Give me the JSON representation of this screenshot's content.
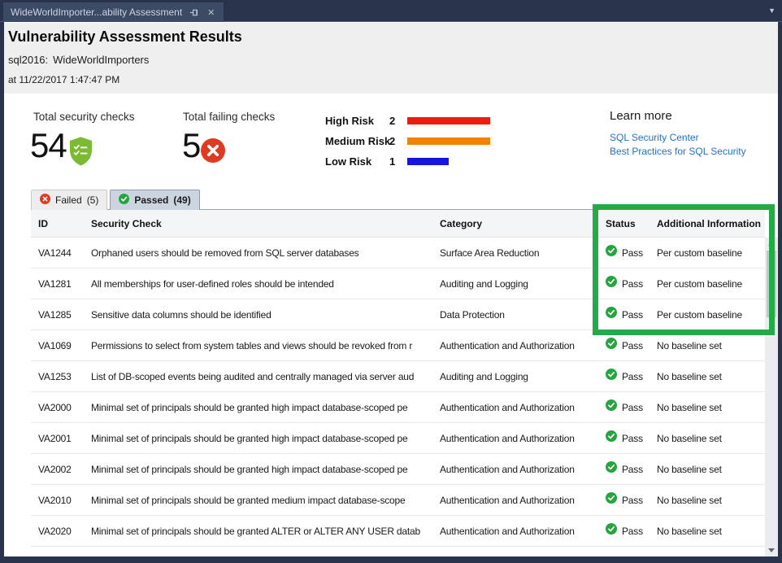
{
  "window": {
    "tab_title": "WideWorldImporter...ability Assessment",
    "dropdown_icon": "▼"
  },
  "header": {
    "title": "Vulnerability Assessment Results",
    "server_label": "sql2016:",
    "database": "WideWorldImporters",
    "timestamp": "at 11/22/2017 1:47:47 PM"
  },
  "summary": {
    "total_checks_label": "Total security checks",
    "total_checks_value": "54",
    "failing_checks_label": "Total failing checks",
    "failing_checks_value": "5",
    "risks": [
      {
        "label": "High Risk",
        "count": 2,
        "color": "#ec1c11"
      },
      {
        "label": "Medium Risk",
        "count": 2,
        "color": "#ee8400"
      },
      {
        "label": "Low Risk",
        "count": 1,
        "color": "#1515dd"
      }
    ],
    "learn_more": {
      "title": "Learn more",
      "links": [
        "SQL Security Center",
        "Best Practices for SQL Security"
      ]
    }
  },
  "tabs": [
    {
      "label": "Failed",
      "count": "(5)",
      "status": "failed",
      "active": false
    },
    {
      "label": "Passed",
      "count": "(49)",
      "status": "passed",
      "active": true
    }
  ],
  "table": {
    "columns": [
      "ID",
      "Security Check",
      "Category",
      "Status",
      "Additional Information"
    ],
    "rows": [
      {
        "id": "VA1244",
        "check": "Orphaned users should be removed from SQL server databases",
        "category": "Surface Area Reduction",
        "status": "Pass",
        "info": "Per custom baseline"
      },
      {
        "id": "VA1281",
        "check": "All memberships for user-defined roles should be intended",
        "category": "Auditing and Logging",
        "status": "Pass",
        "info": "Per custom baseline"
      },
      {
        "id": "VA1285",
        "check": "Sensitive data columns should be identified",
        "category": "Data Protection",
        "status": "Pass",
        "info": "Per custom baseline"
      },
      {
        "id": "VA1069",
        "check": "Permissions to select from system tables and views should be revoked from r",
        "category": "Authentication and Authorization",
        "status": "Pass",
        "info": "No baseline set"
      },
      {
        "id": "VA1253",
        "check": "List of DB-scoped events being audited and centrally managed via server aud",
        "category": "Auditing and Logging",
        "status": "Pass",
        "info": "No baseline set"
      },
      {
        "id": "VA2000",
        "check": "Minimal set of principals should be granted high impact database-scoped pe",
        "category": "Authentication and Authorization",
        "status": "Pass",
        "info": "No baseline set"
      },
      {
        "id": "VA2001",
        "check": "Minimal set of principals should be granted high impact database-scoped pe",
        "category": "Authentication and Authorization",
        "status": "Pass",
        "info": "No baseline set"
      },
      {
        "id": "VA2002",
        "check": "Minimal set of principals should be granted high impact database-scoped pe",
        "category": "Authentication and Authorization",
        "status": "Pass",
        "info": "No baseline set"
      },
      {
        "id": "VA2010",
        "check": "Minimal set of principals should be granted medium impact database-scope",
        "category": "Authentication and Authorization",
        "status": "Pass",
        "info": "No baseline set"
      },
      {
        "id": "VA2020",
        "check": "Minimal set of principals should be granted ALTER or ALTER ANY USER datab",
        "category": "Authentication and Authorization",
        "status": "Pass",
        "info": "No baseline set"
      }
    ]
  },
  "colors": {
    "chrome_navy": "#29344c",
    "annotation_green": "#24aa46",
    "pass_green": "#26a53f",
    "fail_red": "#df3b23",
    "shield_green": "#7cbb31",
    "link_blue": "#2173c6",
    "risk_high": "#ec1c11",
    "risk_medium": "#ee8400",
    "risk_low": "#1515dd"
  }
}
